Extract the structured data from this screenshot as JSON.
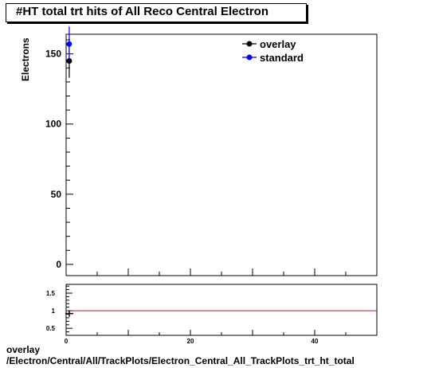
{
  "chart_data": [
    {
      "type": "scatter",
      "title": "#HT total trt hits of All Reco Central  Electron",
      "ylabel": "Electrons",
      "xlim": [
        0,
        50
      ],
      "ylim": [
        -8,
        164
      ],
      "yticks": [
        0,
        50,
        100,
        150
      ],
      "ytick_labels": [
        "0",
        "50",
        "100",
        "150"
      ],
      "legend_placement": "top-right",
      "grid": false,
      "series": [
        {
          "name": "overlay",
          "color": "#000000",
          "x": [
            0.5
          ],
          "y": [
            145
          ],
          "yerr": [
            12
          ]
        },
        {
          "name": "standard",
          "color": "#0000ff",
          "x": [
            0.5
          ],
          "y": [
            157
          ],
          "yerr": [
            12.5
          ]
        }
      ]
    },
    {
      "type": "scatter",
      "xlim": [
        0,
        50
      ],
      "ylim": [
        0.3,
        1.75
      ],
      "xticks": [
        0,
        20,
        40
      ],
      "xtick_labels": [
        "0",
        "20",
        "40"
      ],
      "yticks": [
        0.5,
        1,
        1.5
      ],
      "ytick_labels": [
        "0.5",
        "1",
        "1.5"
      ],
      "reference_line": {
        "y": 1,
        "color": "#aa2222"
      },
      "grid": false,
      "series": [
        {
          "name": "",
          "color": "#000000",
          "x": [
            0.5
          ],
          "y": [
            0.92
          ],
          "yerr": [
            0.09
          ]
        }
      ]
    }
  ],
  "footer": {
    "line1": "overlay",
    "line2": "/Electron/Central/All/TrackPlots/Electron_Central_All_TrackPlots_trt_ht_total"
  }
}
